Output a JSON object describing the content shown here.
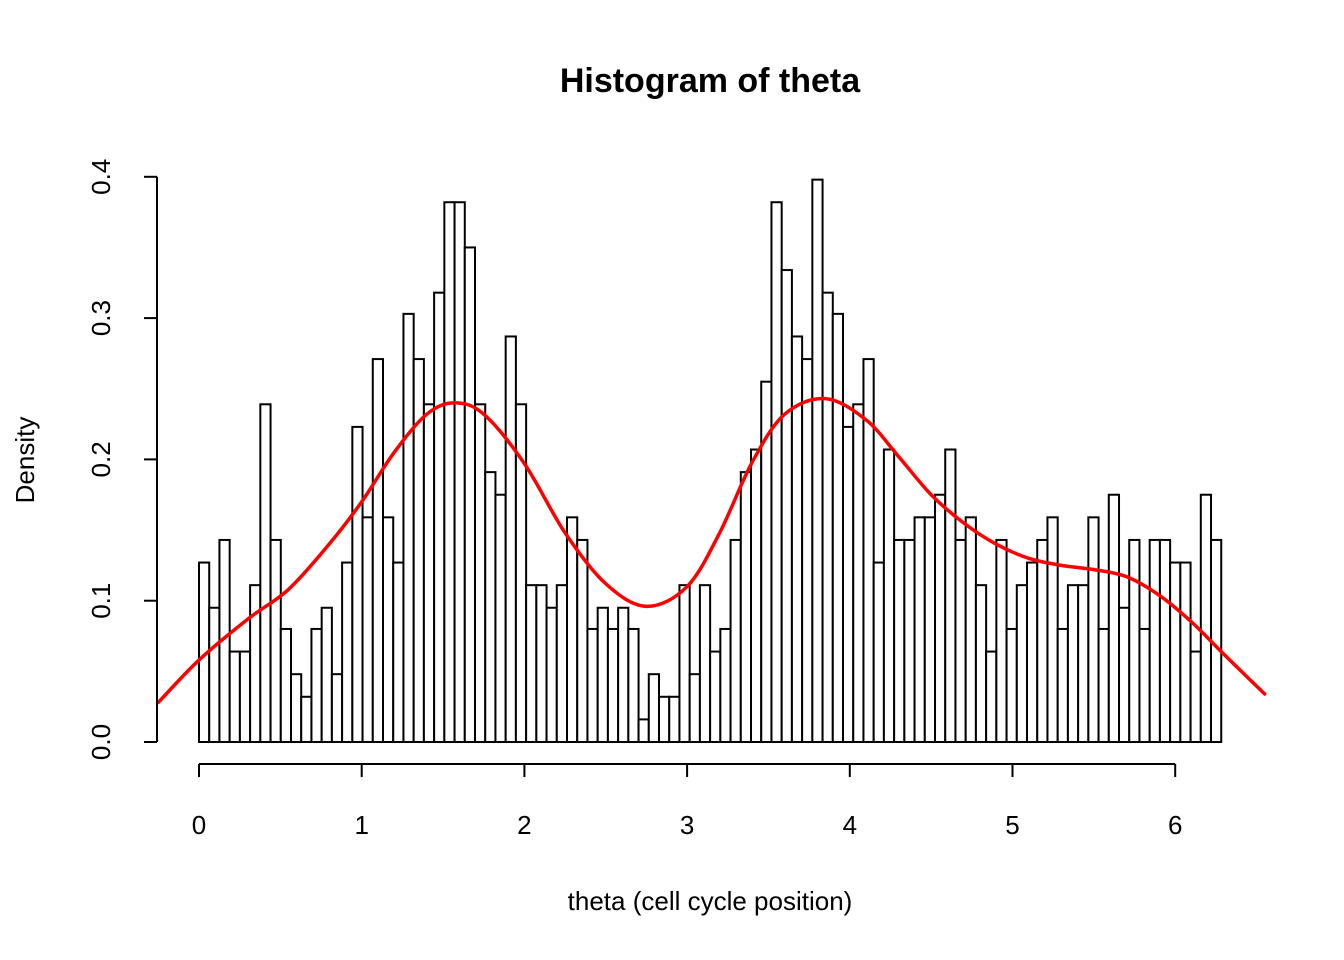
{
  "chart_data": {
    "type": "bar",
    "title": "Histogram of theta",
    "xlabel": "theta (cell cycle position)",
    "ylabel": "Density",
    "xlim": [
      -0.25,
      6.55
    ],
    "ylim": [
      0,
      0.4
    ],
    "x_ticks": [
      0,
      1,
      2,
      3,
      4,
      5,
      6
    ],
    "x_tick_labels": [
      "0",
      "1",
      "2",
      "3",
      "4",
      "5",
      "6"
    ],
    "y_ticks": [
      0,
      0.1,
      0.2,
      0.3,
      0.4
    ],
    "y_tick_labels": [
      "0.0",
      "0.1",
      "0.2",
      "0.3",
      "0.4"
    ],
    "grid": false,
    "bin_start": 0,
    "bin_width": 0.06283,
    "values": [
      0.127,
      0.095,
      0.143,
      0.064,
      0.064,
      0.111,
      0.239,
      0.143,
      0.08,
      0.048,
      0.032,
      0.08,
      0.095,
      0.048,
      0.127,
      0.223,
      0.159,
      0.271,
      0.159,
      0.127,
      0.303,
      0.271,
      0.239,
      0.318,
      0.382,
      0.382,
      0.35,
      0.239,
      0.191,
      0.175,
      0.287,
      0.239,
      0.111,
      0.111,
      0.095,
      0.111,
      0.159,
      0.143,
      0.08,
      0.095,
      0.08,
      0.095,
      0.08,
      0.016,
      0.048,
      0.032,
      0.032,
      0.111,
      0.048,
      0.111,
      0.064,
      0.08,
      0.143,
      0.191,
      0.207,
      0.255,
      0.382,
      0.334,
      0.287,
      0.271,
      0.398,
      0.318,
      0.303,
      0.223,
      0.239,
      0.271,
      0.127,
      0.207,
      0.143,
      0.143,
      0.159,
      0.159,
      0.175,
      0.207,
      0.143,
      0.159,
      0.111,
      0.064,
      0.143,
      0.08,
      0.111,
      0.127,
      0.143,
      0.159,
      0.08,
      0.111,
      0.111,
      0.159,
      0.08,
      0.175,
      0.095,
      0.143,
      0.08,
      0.143,
      0.143,
      0.127,
      0.127,
      0.064,
      0.175,
      0.143
    ],
    "density_color": "#ff0000",
    "density_curve": {
      "x": [
        -0.25,
        0.0,
        0.3,
        0.55,
        0.8,
        1.0,
        1.2,
        1.4,
        1.57,
        1.75,
        2.0,
        2.25,
        2.5,
        2.75,
        3.0,
        3.2,
        3.4,
        3.6,
        3.85,
        4.1,
        4.3,
        4.5,
        4.7,
        4.9,
        5.1,
        5.3,
        5.5,
        5.7,
        5.9,
        6.1,
        6.3,
        6.55
      ],
      "y": [
        0.028,
        0.058,
        0.087,
        0.108,
        0.14,
        0.17,
        0.205,
        0.232,
        0.24,
        0.232,
        0.197,
        0.148,
        0.112,
        0.096,
        0.11,
        0.148,
        0.198,
        0.232,
        0.243,
        0.228,
        0.202,
        0.175,
        0.155,
        0.14,
        0.13,
        0.125,
        0.122,
        0.117,
        0.104,
        0.085,
        0.062,
        0.034
      ]
    }
  }
}
